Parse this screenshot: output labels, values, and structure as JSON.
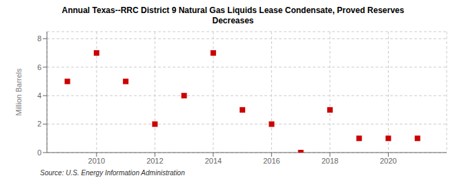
{
  "chart_data": {
    "type": "scatter",
    "title": "Annual Texas--RRC District 9 Natural Gas Liquids Lease Condensate, Proved Reserves",
    "subtitle": "Decreases",
    "y_label": "Million Barrels",
    "source": "Source: U.S. Energy Information Administration",
    "x": [
      2009,
      2010,
      2011,
      2012,
      2013,
      2014,
      2015,
      2016,
      2017,
      2018,
      2019,
      2020,
      2021
    ],
    "values": [
      5.0,
      7.0,
      5.0,
      2.0,
      4.0,
      7.0,
      3.0,
      2.0,
      0.0,
      3.0,
      1.0,
      1.0,
      1.0
    ],
    "color": "#cc0000",
    "marker": "square",
    "xlim": [
      2008.3,
      2022.0
    ],
    "ylim": [
      0,
      8.5
    ],
    "xticks": [
      2010,
      2012,
      2014,
      2016,
      2018,
      2020
    ],
    "yticks": [
      0,
      2,
      4,
      6,
      8
    ],
    "grid": true
  }
}
